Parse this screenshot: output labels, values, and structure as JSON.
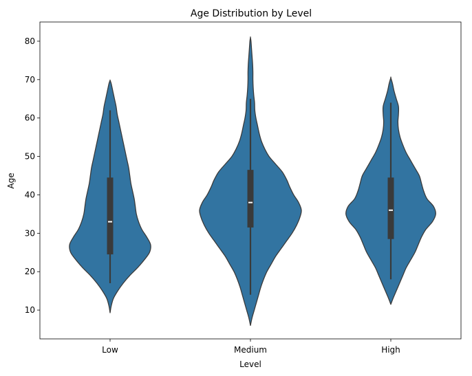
{
  "chart_data": {
    "type": "violin",
    "title": "Age Distribution by Level",
    "xlabel": "Level",
    "ylabel": "Age",
    "ylim": [
      2.5,
      85
    ],
    "yticks": [
      10,
      20,
      30,
      40,
      50,
      60,
      70,
      80
    ],
    "grid": false,
    "colors": {
      "fill": "#3274a1",
      "outline": "#3a3a3a",
      "box": "#3a3a3a",
      "median": "#ffffff"
    },
    "categories": [
      "Low",
      "Medium",
      "High"
    ],
    "violins": [
      {
        "category": "Low",
        "min": 9.3,
        "max": 69.8,
        "whisker_low": 17,
        "q1": 24.5,
        "median": 33,
        "q3": 44.5,
        "whisker_high": 62,
        "density": [
          [
            9.3,
            0
          ],
          [
            11,
            2
          ],
          [
            13,
            6
          ],
          [
            15,
            14
          ],
          [
            17,
            24
          ],
          [
            19,
            36
          ],
          [
            21,
            50
          ],
          [
            23,
            62
          ],
          [
            25,
            72
          ],
          [
            27,
            74
          ],
          [
            29,
            67
          ],
          [
            31,
            58
          ],
          [
            33,
            52
          ],
          [
            35,
            48
          ],
          [
            37,
            46
          ],
          [
            39,
            44
          ],
          [
            41,
            41
          ],
          [
            43,
            38
          ],
          [
            45,
            36
          ],
          [
            47,
            34
          ],
          [
            49,
            31
          ],
          [
            51,
            28
          ],
          [
            53,
            25
          ],
          [
            55,
            22
          ],
          [
            57,
            19
          ],
          [
            59,
            16
          ],
          [
            61,
            13
          ],
          [
            63,
            11
          ],
          [
            65,
            8
          ],
          [
            67,
            5
          ],
          [
            69,
            2
          ],
          [
            69.8,
            0
          ]
        ]
      },
      {
        "category": "Medium",
        "min": 6,
        "max": 81,
        "whisker_low": 14,
        "q1": 31.5,
        "median": 38,
        "q3": 46.5,
        "whisker_high": 65,
        "density": [
          [
            6,
            0
          ],
          [
            8,
            3
          ],
          [
            10,
            7
          ],
          [
            12,
            11
          ],
          [
            14,
            15
          ],
          [
            16,
            19
          ],
          [
            18,
            24
          ],
          [
            20,
            30
          ],
          [
            22,
            38
          ],
          [
            24,
            46
          ],
          [
            26,
            56
          ],
          [
            28,
            66
          ],
          [
            30,
            76
          ],
          [
            32,
            84
          ],
          [
            34,
            90
          ],
          [
            36,
            93
          ],
          [
            38,
            88
          ],
          [
            40,
            79
          ],
          [
            42,
            72
          ],
          [
            44,
            66
          ],
          [
            46,
            58
          ],
          [
            48,
            46
          ],
          [
            50,
            34
          ],
          [
            52,
            26
          ],
          [
            54,
            20
          ],
          [
            56,
            16
          ],
          [
            58,
            13
          ],
          [
            60,
            10
          ],
          [
            62,
            8
          ],
          [
            64,
            7.5
          ],
          [
            66,
            6
          ],
          [
            68,
            5
          ],
          [
            70,
            4.5
          ],
          [
            72,
            4.5
          ],
          [
            74,
            4
          ],
          [
            76,
            3
          ],
          [
            78,
            2
          ],
          [
            80,
            1
          ],
          [
            81,
            0
          ]
        ]
      },
      {
        "category": "High",
        "min": 11.5,
        "max": 70.5,
        "whisker_low": 18,
        "q1": 28.5,
        "median": 36,
        "q3": 44.5,
        "whisker_high": 64,
        "density": [
          [
            11.5,
            0
          ],
          [
            13,
            4
          ],
          [
            15,
            10
          ],
          [
            17,
            16
          ],
          [
            19,
            22
          ],
          [
            21,
            28
          ],
          [
            23,
            36
          ],
          [
            25,
            44
          ],
          [
            27,
            50
          ],
          [
            29,
            56
          ],
          [
            31,
            64
          ],
          [
            33,
            76
          ],
          [
            35,
            82
          ],
          [
            37,
            78
          ],
          [
            39,
            66
          ],
          [
            41,
            60
          ],
          [
            43,
            56
          ],
          [
            45,
            52
          ],
          [
            47,
            44
          ],
          [
            49,
            36
          ],
          [
            51,
            28
          ],
          [
            53,
            22
          ],
          [
            55,
            17
          ],
          [
            57,
            14
          ],
          [
            59,
            13
          ],
          [
            61,
            14
          ],
          [
            63,
            14
          ],
          [
            65,
            10
          ],
          [
            67,
            6
          ],
          [
            69,
            3
          ],
          [
            70.5,
            0
          ]
        ]
      }
    ]
  }
}
